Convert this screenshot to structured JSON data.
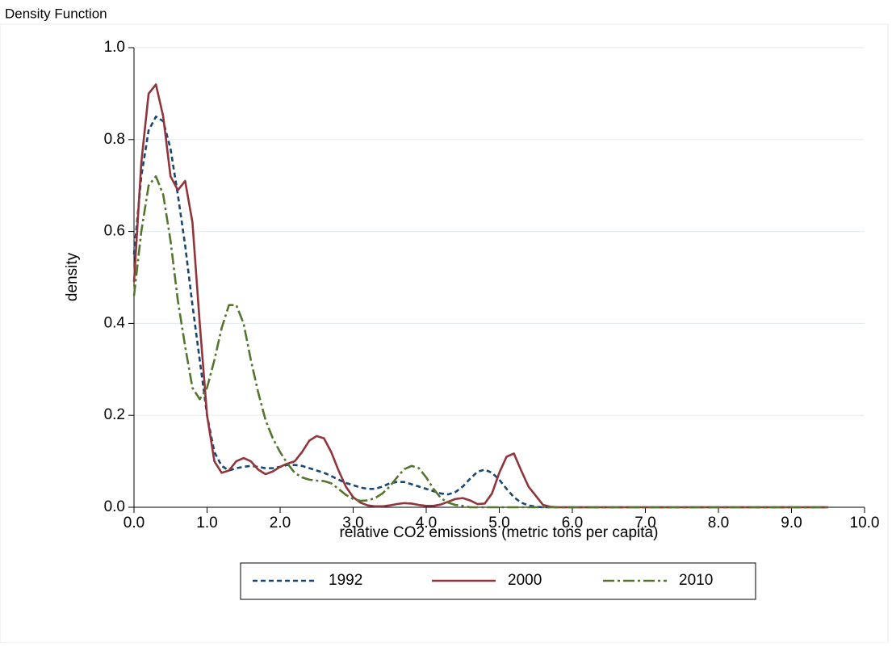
{
  "chart_data": {
    "type": "line",
    "title": "Density Function",
    "xlabel": "relative CO2 emissions (metric tons per capita)",
    "ylabel": "density",
    "x": [
      0,
      0.1,
      0.2,
      0.3,
      0.4,
      0.5,
      0.6,
      0.7,
      0.8,
      0.9,
      1.0,
      1.1,
      1.2,
      1.3,
      1.4,
      1.5,
      1.6,
      1.7,
      1.8,
      1.9,
      2.0,
      2.1,
      2.2,
      2.3,
      2.4,
      2.5,
      2.6,
      2.7,
      2.8,
      2.9,
      3.0,
      3.1,
      3.2,
      3.3,
      3.4,
      3.5,
      3.6,
      3.7,
      3.8,
      3.9,
      4.0,
      4.1,
      4.2,
      4.3,
      4.4,
      4.5,
      4.6,
      4.7,
      4.8,
      4.9,
      5.0,
      5.1,
      5.2,
      5.3,
      5.4,
      5.5,
      5.6,
      5.7,
      5.8,
      5.9,
      6.0,
      7,
      8,
      9,
      9.5
    ],
    "series": [
      {
        "name": "1992",
        "color": "#1a476f",
        "dash": "6,4",
        "values": [
          0.55,
          0.72,
          0.82,
          0.85,
          0.84,
          0.78,
          0.68,
          0.57,
          0.44,
          0.32,
          0.2,
          0.12,
          0.09,
          0.08,
          0.085,
          0.088,
          0.09,
          0.088,
          0.085,
          0.085,
          0.088,
          0.092,
          0.092,
          0.09,
          0.085,
          0.08,
          0.075,
          0.068,
          0.06,
          0.053,
          0.048,
          0.043,
          0.04,
          0.04,
          0.045,
          0.052,
          0.055,
          0.055,
          0.05,
          0.045,
          0.04,
          0.035,
          0.03,
          0.028,
          0.033,
          0.045,
          0.062,
          0.077,
          0.082,
          0.075,
          0.06,
          0.04,
          0.022,
          0.01,
          0.004,
          0.001,
          0,
          0,
          0,
          0,
          0,
          0,
          0,
          0,
          0
        ]
      },
      {
        "name": "2000",
        "color": "#90353b",
        "dash": "none",
        "values": [
          0.49,
          0.75,
          0.9,
          0.92,
          0.85,
          0.72,
          0.69,
          0.71,
          0.62,
          0.4,
          0.2,
          0.1,
          0.075,
          0.08,
          0.1,
          0.107,
          0.1,
          0.082,
          0.072,
          0.078,
          0.088,
          0.095,
          0.1,
          0.12,
          0.145,
          0.155,
          0.15,
          0.12,
          0.08,
          0.045,
          0.022,
          0.01,
          0.004,
          0.002,
          0.002,
          0.004,
          0.007,
          0.009,
          0.008,
          0.005,
          0.003,
          0.003,
          0.006,
          0.012,
          0.018,
          0.02,
          0.015,
          0.007,
          0.008,
          0.03,
          0.075,
          0.11,
          0.117,
          0.08,
          0.045,
          0.025,
          0.005,
          0.001,
          0,
          0,
          0,
          0,
          0,
          0,
          0
        ]
      },
      {
        "name": "2010",
        "color": "#55752f",
        "dash": "14,4,3,4",
        "values": [
          0.46,
          0.6,
          0.7,
          0.72,
          0.68,
          0.58,
          0.45,
          0.35,
          0.26,
          0.235,
          0.26,
          0.32,
          0.39,
          0.44,
          0.44,
          0.4,
          0.32,
          0.25,
          0.19,
          0.15,
          0.12,
          0.095,
          0.075,
          0.065,
          0.06,
          0.058,
          0.057,
          0.052,
          0.04,
          0.027,
          0.018,
          0.014,
          0.015,
          0.02,
          0.03,
          0.045,
          0.065,
          0.083,
          0.09,
          0.085,
          0.065,
          0.04,
          0.02,
          0.01,
          0.005,
          0.003,
          0,
          0,
          0,
          0,
          0,
          0,
          0,
          0,
          0,
          0,
          0,
          0,
          0,
          0,
          0,
          0,
          0,
          0,
          0
        ]
      }
    ],
    "xlim": [
      0,
      10
    ],
    "ylim": [
      0,
      1
    ],
    "xticks": [
      {
        "value": 0,
        "label": "0.0"
      },
      {
        "value": 1,
        "label": "1.0"
      },
      {
        "value": 2,
        "label": "2.0"
      },
      {
        "value": 3,
        "label": "3.0"
      },
      {
        "value": 4,
        "label": "4.0"
      },
      {
        "value": 5,
        "label": "5.0"
      },
      {
        "value": 6,
        "label": "6.0"
      },
      {
        "value": 7,
        "label": "7.0"
      },
      {
        "value": 8,
        "label": "8.0"
      },
      {
        "value": 9,
        "label": "9.0"
      },
      {
        "value": 10,
        "label": "10.0"
      }
    ],
    "yticks": [
      {
        "value": 0,
        "label": "0.0"
      },
      {
        "value": 0.2,
        "label": "0.2"
      },
      {
        "value": 0.4,
        "label": "0.4"
      },
      {
        "value": 0.6,
        "label": "0.6"
      },
      {
        "value": 0.8,
        "label": "0.8"
      },
      {
        "value": 1,
        "label": "1.0"
      }
    ],
    "grid": true,
    "legend": "bottom"
  }
}
